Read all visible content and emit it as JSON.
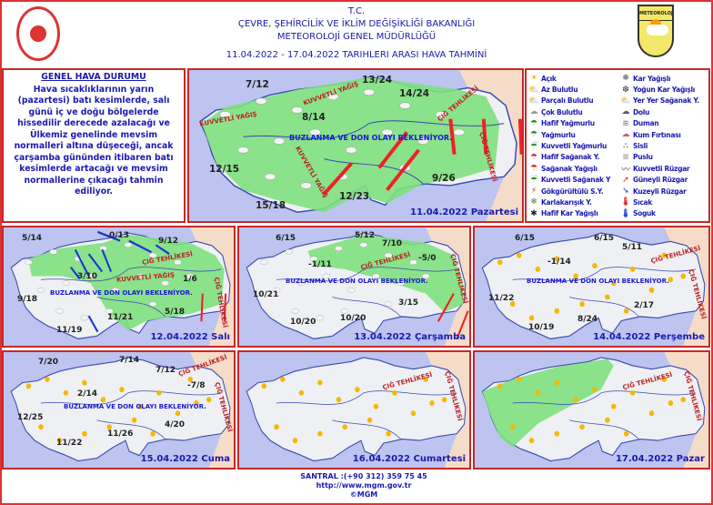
{
  "header": {
    "line1": "T.C.",
    "line2": "ÇEVRE, ŞEHİRCİLİK VE İKLİM DEĞİŞİKLİĞİ BAKANLIĞI",
    "line3": "METEOROLOJİ GENEL MÜDÜRLÜĞÜ",
    "date_range": "11.04.2022 - 17.04.2022   TARIHLERI ARASI HAVA TAHMİNİ",
    "logo_text": "METEOROLOJİ"
  },
  "general": {
    "title": "GENEL HAVA DURUMU",
    "text": "Hava sıcaklıklarının yarın (pazartesi) batı kesimlerde, salı günü iç ve doğu bölgelerde hissedilir derecede azalacağı ve Ülkemiz genelinde mevsim normalleri altına düşeceği, ancak çarşamba gününden itibaren batı kesimlerde artacağı ve mevsim normallerine çıkacağı tahmin ediliyor."
  },
  "legend": [
    {
      "icon": "clear-sun-icon",
      "glyph": "☀",
      "color": "#f5a000",
      "label": "Açık"
    },
    {
      "icon": "few-clouds-icon",
      "glyph": "⛅",
      "color": "#e0a000",
      "label": "Az Bulutlu"
    },
    {
      "icon": "partly-cloudy-icon",
      "glyph": "⛅",
      "color": "#d08a40",
      "label": "Parçalı Bulutlu"
    },
    {
      "icon": "cloudy-icon",
      "glyph": "☁",
      "color": "#999",
      "label": "Çok Bulutlu"
    },
    {
      "icon": "light-rain-icon",
      "glyph": "☂",
      "color": "#2a8a2a",
      "label": "Hafif Yağmurlu"
    },
    {
      "icon": "rain-icon",
      "glyph": "☂",
      "color": "#2a8a2a",
      "label": "Yağmurlu"
    },
    {
      "icon": "heavy-rain-icon",
      "glyph": "☔",
      "color": "#2a8a2a",
      "label": "Kuvvetli Yağmurlu"
    },
    {
      "icon": "light-shower-icon",
      "glyph": "☂",
      "color": "#c33",
      "label": "Hafif Sağanak Y."
    },
    {
      "icon": "shower-icon",
      "glyph": "☂",
      "color": "#c33",
      "label": "Sağanak Yağışlı"
    },
    {
      "icon": "heavy-shower-icon",
      "glyph": "☔",
      "color": "#2a8a2a",
      "label": "Kuvvetli Sağanak Y"
    },
    {
      "icon": "thunderstorm-icon",
      "glyph": "⚡",
      "color": "#d22",
      "label": "Gökgürültülü S.Y."
    },
    {
      "icon": "sleet-icon",
      "glyph": "❄",
      "color": "#2a8a2a",
      "label": "Karlakarışık Y."
    },
    {
      "icon": "light-snow-icon",
      "glyph": "✱",
      "color": "#223",
      "label": "Hafif Kar Yağışlı"
    },
    {
      "icon": "snow-icon",
      "glyph": "❄",
      "color": "#335",
      "label": "Kar Yağışlı"
    },
    {
      "icon": "heavy-snow-icon",
      "glyph": "❆",
      "color": "#335",
      "label": "Yoğun Kar Yağışlı"
    },
    {
      "icon": "local-shower-icon",
      "glyph": "⛅",
      "color": "#c66",
      "label": "Yer Yer Sağanak Y."
    },
    {
      "icon": "hail-icon",
      "glyph": "☁",
      "color": "#557",
      "label": "Dolu"
    },
    {
      "icon": "smoke-icon",
      "glyph": "≋",
      "color": "#888",
      "label": "Duman"
    },
    {
      "icon": "sandstorm-icon",
      "glyph": "☁",
      "color": "#b66",
      "label": "Kum Fırtınası"
    },
    {
      "icon": "fog-icon",
      "glyph": "∴",
      "color": "#999",
      "label": "Sisli"
    },
    {
      "icon": "mist-icon",
      "glyph": "≡",
      "color": "#999",
      "label": "Puslu"
    },
    {
      "icon": "strong-wind-icon",
      "glyph": "〰",
      "color": "#888",
      "label": "Kuvvetli Rüzgar"
    },
    {
      "icon": "south-wind-arrow-icon",
      "glyph": "➚",
      "color": "#e22",
      "label": "Güneyli Rüzgar"
    },
    {
      "icon": "north-wind-arrow-icon",
      "glyph": "➘",
      "color": "#1a3ad0",
      "label": "Kuzeyli Rüzgar"
    },
    {
      "icon": "hot-thermometer-icon",
      "glyph": "🌡",
      "color": "#d22",
      "label": "Sıcak"
    },
    {
      "icon": "cold-thermometer-icon",
      "glyph": "🌡",
      "color": "#1a3ad0",
      "label": "Soguk"
    }
  ],
  "maps": {
    "d11": {
      "day": "11.04.2022 Pazartesi",
      "temps": [
        "7/12",
        "13/24",
        "14/24",
        "8/14",
        "12/15",
        "9/26",
        "12/23",
        "15/18"
      ],
      "warnings": [
        "KUVVETLİ YAĞIŞ",
        "KUVVETLİ YAĞIŞ",
        "KUVVETLİ YAĞIŞ",
        "ÇIĞ TEHLİKESİ",
        "ÇIĞ TEHLİKESİ"
      ],
      "notice": "BUZLANMA VE DON OLAYI BEKLENİYOR."
    },
    "d12": {
      "day": "12.04.2022 Salı",
      "temps": [
        "5/14",
        "0/13",
        "9/12",
        "1/6",
        "3/10",
        "9/18",
        "5/18",
        "11/21",
        "11/19"
      ],
      "warnings": [
        "ÇIĞ TEHLİKESİ",
        "KUVVETLİ YAĞIŞ",
        "ÇIĞ TEHLİKESİ"
      ],
      "notice": "BUZLANMA VE DON OLAYI BEKLENİYOR."
    },
    "d13": {
      "day": "13.04.2022 Çarşamba",
      "temps": [
        "6/15",
        "5/12",
        "7/10",
        "-1/11",
        "-5/0",
        "10/21",
        "3/15",
        "10/20",
        "10/20"
      ],
      "warnings": [
        "ÇIĞ TEHLİKESİ",
        "ÇIĞ TEHLİKESİ"
      ],
      "notice": "BUZLANMA VE DON OLAYI BEKLENİYOR."
    },
    "d14": {
      "day": "14.04.2022 Perşembe",
      "temps": [
        "6/15",
        "6/15",
        "5/11",
        "-1/14",
        "11/22",
        "2/17",
        "8/24",
        "10/19"
      ],
      "warnings": [
        "ÇIĞ TEHLİKESİ",
        "ÇIĞ TEHLİKESİ"
      ],
      "notice": "BUZLANMA VE DON OLAYI BEKLENİYOR."
    },
    "d15": {
      "day": "15.04.2022 Cuma",
      "temps": [
        "7/20",
        "7/14",
        "7/12",
        "-7/8",
        "2/14",
        "12/25",
        "4/20",
        "11/26",
        "11/22"
      ],
      "warnings": [
        "ÇIĞ TEHLİKESİ",
        "ÇIĞ TEHLİKESİ"
      ],
      "notice": "BUZLANMA VE DON OLAYI BEKLENİYOR."
    },
    "d16": {
      "day": "16.04.2022 Cumartesi",
      "warnings": [
        "ÇIĞ TEHLİKESİ",
        "ÇIĞ TEHLİKESİ"
      ]
    },
    "d17": {
      "day": "17.04.2022 Pazar",
      "warnings": [
        "ÇIĞ TEHLİKESİ",
        "ÇIĞ TEHLİKESİ"
      ]
    }
  },
  "colors": {
    "sea": "#bcc4ef",
    "land": "#eef0f4",
    "rain_area": "#7ee07e",
    "neighbor": "#f5dcc8",
    "border": "#c62828",
    "text": "#1a1ab0"
  },
  "footer": {
    "phone": "SANTRAL :(+90 312) 359 75 45",
    "url": "http://www.mgm.gov.tr",
    "copyright": "©MGM"
  }
}
